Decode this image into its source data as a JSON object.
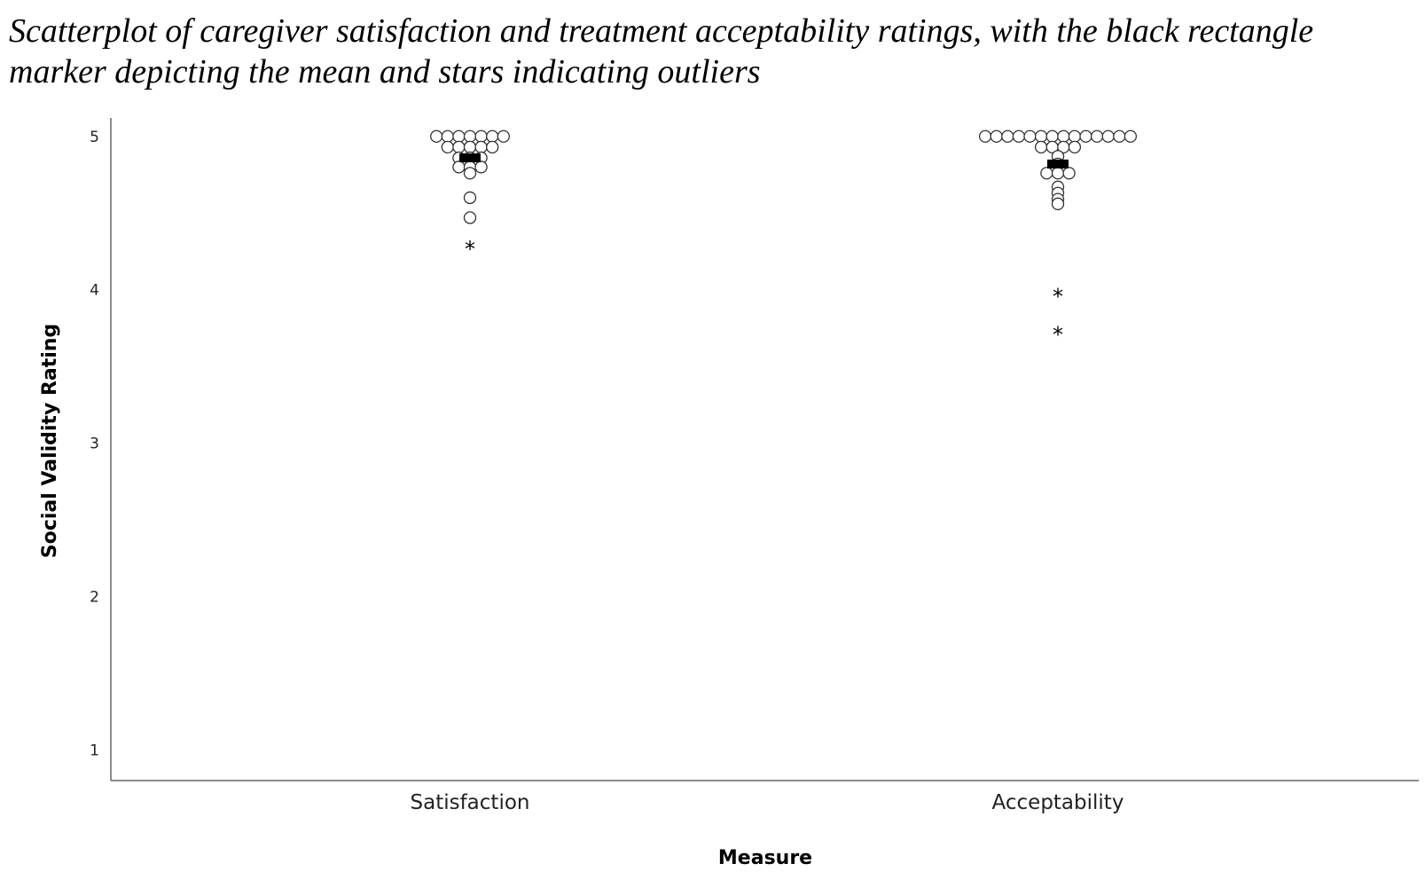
{
  "caption": "Scatterplot of caregiver satisfaction and treatment acceptability ratings, with the black rectangle marker depicting the mean and stars indicating outliers",
  "chart_data": {
    "type": "scatter",
    "xlabel": "Measure",
    "ylabel": "Social Validity Rating",
    "ylim": [
      0.8,
      5.12
    ],
    "yticks": [
      1,
      2,
      3,
      4,
      5
    ],
    "grid": false,
    "legend": "none",
    "categories": [
      "Satisfaction",
      "Acceptability"
    ],
    "series": [
      {
        "category": "Satisfaction",
        "values": [
          5,
          5,
          5,
          5,
          5,
          5,
          5,
          4.93,
          4.93,
          4.93,
          4.93,
          4.93,
          4.86,
          4.86,
          4.86,
          4.8,
          4.8,
          4.8,
          4.76,
          4.6,
          4.47
        ],
        "mean": 4.86,
        "outliers": [
          4.3
        ]
      },
      {
        "category": "Acceptability",
        "values": [
          5,
          5,
          5,
          5,
          5,
          5,
          5,
          5,
          5,
          5,
          5,
          5,
          5,
          5,
          4.93,
          4.93,
          4.93,
          4.93,
          4.87,
          4.82,
          4.76,
          4.76,
          4.76,
          4.67,
          4.63,
          4.59,
          4.56
        ],
        "mean": 4.82,
        "outliers": [
          3.99,
          3.74
        ]
      }
    ],
    "colors": {
      "marker_fill": "#ffffff",
      "marker_stroke": "#333333",
      "mean_marker": "#000000",
      "axis": "#666666"
    }
  }
}
